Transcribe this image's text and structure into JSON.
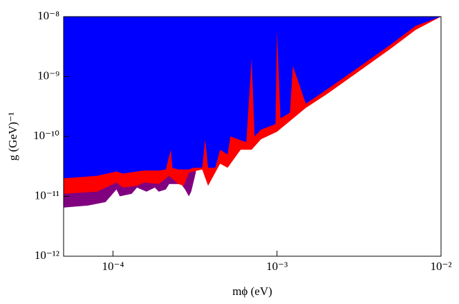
{
  "chart_data": {
    "type": "area",
    "x_label": "mϕ (eV)",
    "y_label": "g (GeV)⁻¹",
    "xscale": "log",
    "yscale": "log",
    "xlim": [
      5e-05,
      0.01
    ],
    "ylim": [
      1e-12,
      1e-08
    ],
    "xticks": [
      {
        "value": 0.0001,
        "label": "10⁻⁴"
      },
      {
        "value": 0.001,
        "label": "10⁻³"
      },
      {
        "value": 0.01,
        "label": "10⁻²"
      }
    ],
    "yticks": [
      {
        "value": 1e-12,
        "label": "10⁻¹²"
      },
      {
        "value": 1e-11,
        "label": "10⁻¹¹"
      },
      {
        "value": 1e-10,
        "label": "10⁻¹⁰"
      },
      {
        "value": 1e-09,
        "label": "10⁻⁹"
      },
      {
        "value": 1e-08,
        "label": "10⁻⁸"
      }
    ],
    "series": [
      {
        "color": "#800080",
        "x": [
          5e-05,
          7e-05,
          9e-05,
          0.000105,
          0.00011,
          0.00013,
          0.00014,
          0.00016,
          0.00018,
          0.00019,
          0.00021,
          0.00022,
          0.00026,
          0.000275,
          0.00029,
          0.0003,
          0.00032
        ],
        "values": [
          6.5e-12,
          7e-12,
          8e-12,
          1.3e-11,
          1e-11,
          1.1e-11,
          1.4e-11,
          1.2e-11,
          1.4e-11,
          1.2e-11,
          1.3e-11,
          1.6e-11,
          1.6e-11,
          1.3e-11,
          1e-11,
          1.2e-11,
          2.5e-11
        ]
      },
      {
        "color": "#ff0000",
        "x": [
          5e-05,
          8e-05,
          0.000105,
          0.000115,
          0.00014,
          0.000155,
          0.00019,
          0.00022,
          0.00025,
          0.00027,
          0.00029,
          0.00035,
          0.00038,
          0.00045,
          0.0005,
          0.0006,
          0.0007,
          0.0008,
          0.001,
          0.0015,
          0.002,
          0.003,
          0.005,
          0.007,
          0.01
        ],
        "values": [
          1.1e-11,
          1.2e-11,
          1.7e-11,
          1.4e-11,
          1.5e-11,
          1.7e-11,
          1.6e-11,
          2.2e-11,
          1.6e-11,
          1.5e-11,
          2.5e-11,
          2.8e-11,
          1.5e-11,
          3.5e-11,
          3e-11,
          6e-11,
          6e-11,
          9e-11,
          1.2e-10,
          3e-10,
          5e-10,
          1.1e-09,
          3e-09,
          6e-09,
          1e-08
        ]
      },
      {
        "color": "#0000ff",
        "x": [
          5e-05,
          8e-05,
          0.000105,
          0.000115,
          0.00014,
          0.000155,
          0.00019,
          0.00021,
          0.000225,
          0.00023,
          0.00025,
          0.00029,
          0.00031,
          0.00035,
          0.000365,
          0.00038,
          0.00042,
          0.00045,
          0.0005,
          0.00052,
          0.00065,
          0.0007,
          0.00073,
          0.0008,
          0.00098,
          0.001,
          0.00105,
          0.0012,
          0.00125,
          0.0015,
          0.002,
          0.003,
          0.005,
          0.007,
          0.01
        ],
        "values": [
          2e-11,
          2.2e-11,
          2.6e-11,
          2.4e-11,
          2.6e-11,
          2.7e-11,
          2.7e-11,
          2.8e-11,
          6e-11,
          3e-11,
          2.8e-11,
          2.8e-11,
          3e-11,
          3e-11,
          9e-11,
          3e-11,
          3e-11,
          6e-11,
          5e-11,
          1e-10,
          8e-11,
          2e-09,
          1e-10,
          1.3e-10,
          1.6e-10,
          6e-09,
          2e-10,
          2.5e-10,
          1.5e-09,
          3.5e-10,
          6e-10,
          1.3e-09,
          3.5e-09,
          7e-09,
          1e-08
        ]
      }
    ]
  }
}
